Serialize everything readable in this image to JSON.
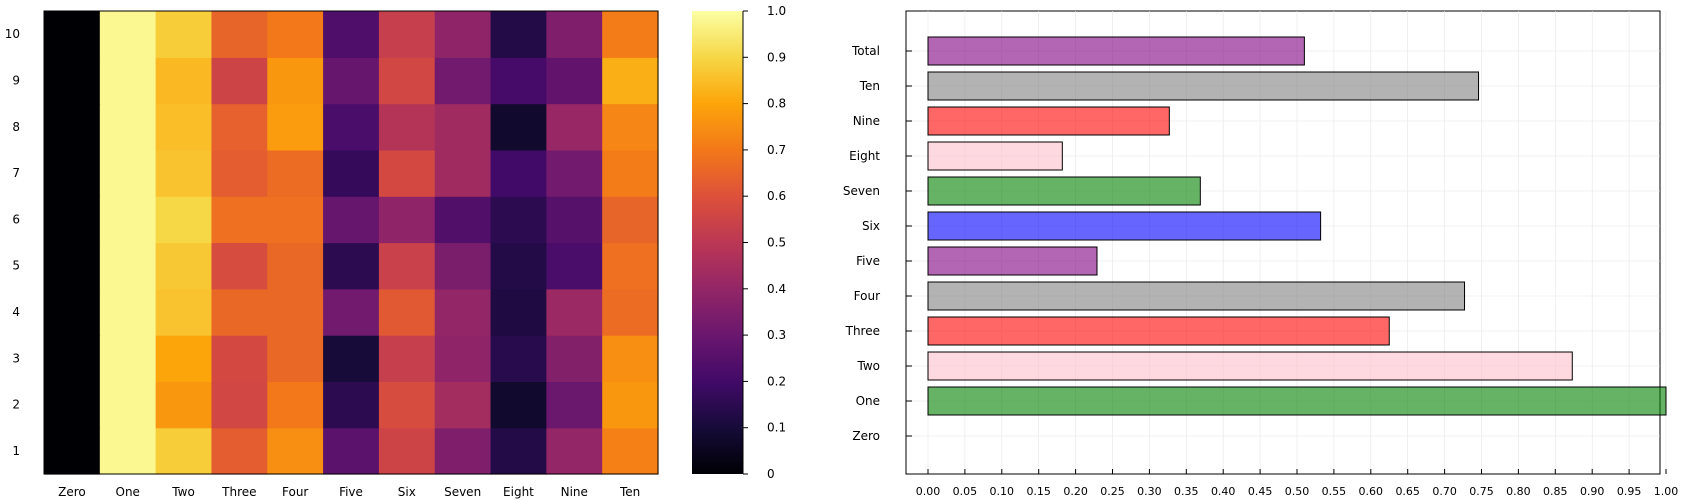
{
  "chart_data": [
    {
      "type": "heatmap",
      "x_categories": [
        "Zero",
        "One",
        "Two",
        "Three",
        "Four",
        "Five",
        "Six",
        "Seven",
        "Eight",
        "Nine",
        "Ten"
      ],
      "y_categories": [
        "1",
        "2",
        "3",
        "4",
        "5",
        "6",
        "7",
        "8",
        "9",
        "10"
      ],
      "values": [
        [
          0.0,
          0.98,
          0.88,
          0.63,
          0.75,
          0.26,
          0.55,
          0.35,
          0.13,
          0.4,
          0.72
        ],
        [
          0.0,
          0.98,
          0.77,
          0.56,
          0.7,
          0.15,
          0.58,
          0.44,
          0.08,
          0.3,
          0.77
        ],
        [
          0.0,
          0.98,
          0.8,
          0.57,
          0.66,
          0.1,
          0.53,
          0.39,
          0.14,
          0.36,
          0.75
        ],
        [
          0.0,
          0.98,
          0.86,
          0.66,
          0.66,
          0.32,
          0.62,
          0.4,
          0.12,
          0.42,
          0.67
        ],
        [
          0.0,
          0.98,
          0.87,
          0.58,
          0.66,
          0.15,
          0.54,
          0.34,
          0.13,
          0.22,
          0.68
        ],
        [
          0.0,
          0.98,
          0.9,
          0.68,
          0.68,
          0.29,
          0.39,
          0.24,
          0.15,
          0.25,
          0.65
        ],
        [
          0.0,
          0.98,
          0.86,
          0.63,
          0.67,
          0.17,
          0.57,
          0.43,
          0.2,
          0.32,
          0.71
        ],
        [
          0.0,
          0.98,
          0.85,
          0.64,
          0.78,
          0.22,
          0.48,
          0.43,
          0.08,
          0.41,
          0.73
        ],
        [
          0.0,
          0.98,
          0.84,
          0.55,
          0.77,
          0.29,
          0.56,
          0.32,
          0.21,
          0.28,
          0.82
        ],
        [
          0.0,
          0.98,
          0.88,
          0.65,
          0.7,
          0.23,
          0.53,
          0.39,
          0.13,
          0.35,
          0.71
        ]
      ],
      "colorbar": {
        "range": [
          0,
          1
        ],
        "ticks": [
          "0",
          "0.1",
          "0.2",
          "0.3",
          "0.4",
          "0.5",
          "0.6",
          "0.7",
          "0.8",
          "0.9",
          "1.0"
        ]
      },
      "colormap": "inferno"
    },
    {
      "type": "bar",
      "orientation": "horizontal",
      "categories": [
        "Zero",
        "One",
        "Two",
        "Three",
        "Four",
        "Five",
        "Six",
        "Seven",
        "Eight",
        "Nine",
        "Ten",
        "Total"
      ],
      "values": [
        0.0,
        1.0,
        0.873,
        0.625,
        0.727,
        0.229,
        0.532,
        0.369,
        0.182,
        0.327,
        0.746,
        0.51
      ],
      "colors": [
        "#006400",
        "#008000",
        "#ffc0cb",
        "#ff0000",
        "#808080",
        "#800080",
        "#0000ff",
        "#008000",
        "#ffc0cb",
        "#ff0000",
        "#808080",
        "#800080"
      ],
      "xlim": [
        0,
        1.0
      ],
      "x_ticks": [
        "0.00",
        "0.05",
        "0.10",
        "0.15",
        "0.20",
        "0.25",
        "0.30",
        "0.35",
        "0.40",
        "0.45",
        "0.50",
        "0.55",
        "0.60",
        "0.65",
        "0.70",
        "0.75",
        "0.80",
        "0.85",
        "0.90",
        "0.95",
        "1.00"
      ],
      "grid": true
    }
  ]
}
